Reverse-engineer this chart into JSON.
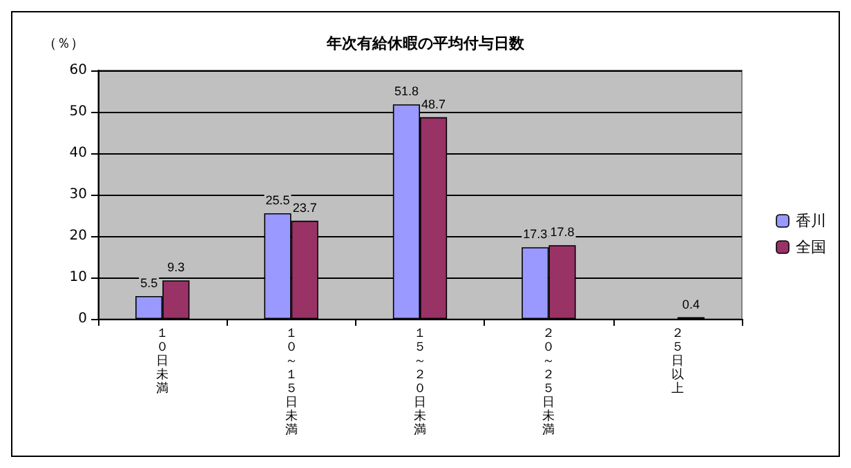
{
  "chart_data": {
    "type": "bar",
    "title": "年次有給休暇の平均付与日数",
    "ylabel": "（％）",
    "categories": [
      "１０日未満",
      "１０～１５日未満",
      "１５～２０日未満",
      "２０～２５日未満",
      "２５日以上"
    ],
    "series": [
      {
        "name": "香川",
        "color": "#9999ff",
        "values": [
          5.5,
          25.5,
          51.8,
          17.3,
          null
        ]
      },
      {
        "name": "全国",
        "color": "#993366",
        "values": [
          9.3,
          23.7,
          48.7,
          17.8,
          0.4
        ]
      }
    ],
    "ylim": [
      0,
      60
    ],
    "yticks": [
      0,
      10,
      20,
      30,
      40,
      50,
      60
    ],
    "grid": "y",
    "legend": "right",
    "data_labels": true
  }
}
